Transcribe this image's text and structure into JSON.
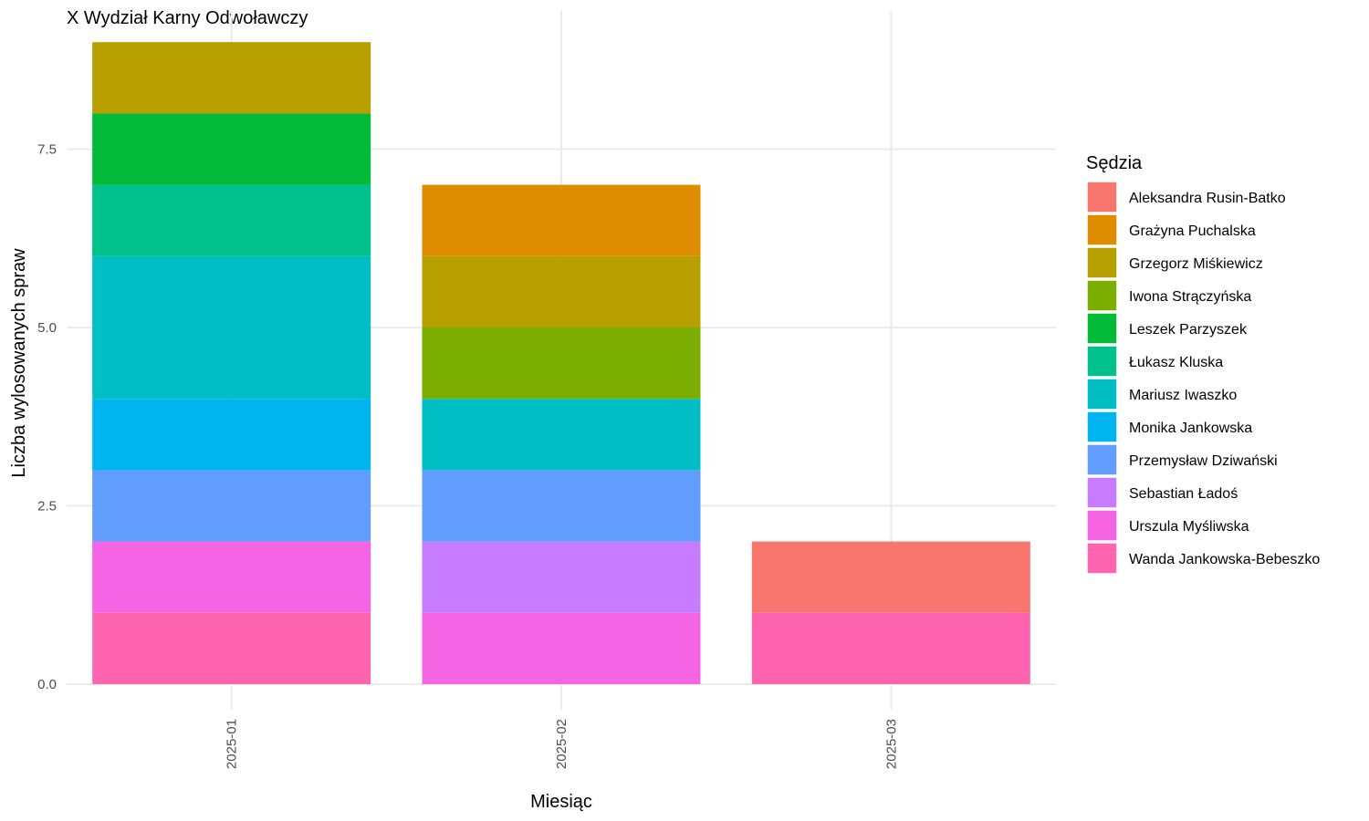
{
  "chart_data": {
    "type": "bar",
    "stacked": true,
    "title": "X Wydział Karny Odwoławczy",
    "xlabel": "Miesiąc",
    "ylabel": "Liczba wylosowanych spraw",
    "categories": [
      "2025-01",
      "2025-02",
      "2025-03"
    ],
    "ylim": [
      0,
      9
    ],
    "yticks": [
      0,
      2.5,
      5,
      7.5
    ],
    "ytick_labels": [
      "0.0",
      "2.5",
      "5.0",
      "7.5"
    ],
    "grid": true,
    "legend": {
      "title": "Sędzia",
      "position": "right"
    },
    "series": [
      {
        "name": "Aleksandra Rusin-Batko",
        "color": "#F8766D",
        "values": [
          0,
          0,
          1
        ]
      },
      {
        "name": "Grażyna Puchalska",
        "color": "#DE8C00",
        "values": [
          0,
          1,
          0
        ]
      },
      {
        "name": "Grzegorz Miśkiewicz",
        "color": "#B79F00",
        "values": [
          1,
          1,
          0
        ]
      },
      {
        "name": "Iwona Strączyńska",
        "color": "#7CAE00",
        "values": [
          0,
          1,
          0
        ]
      },
      {
        "name": "Leszek Parzyszek",
        "color": "#00BA38",
        "values": [
          1,
          0,
          0
        ]
      },
      {
        "name": "Łukasz Kluska",
        "color": "#00C08B",
        "values": [
          1,
          0,
          0
        ]
      },
      {
        "name": "Mariusz Iwaszko",
        "color": "#00BFC4",
        "values": [
          2,
          1,
          0
        ]
      },
      {
        "name": "Monika Jankowska",
        "color": "#00B4F0",
        "values": [
          1,
          0,
          0
        ]
      },
      {
        "name": "Przemysław Dziwański",
        "color": "#619CFF",
        "values": [
          1,
          1,
          0
        ]
      },
      {
        "name": "Sebastian Ładoś",
        "color": "#C77CFF",
        "values": [
          0,
          1,
          0
        ]
      },
      {
        "name": "Urszula Myśliwska",
        "color": "#F564E3",
        "values": [
          1,
          1,
          0
        ]
      },
      {
        "name": "Wanda Jankowska-Bebeszko",
        "color": "#FF64B0",
        "values": [
          1,
          0,
          1
        ]
      }
    ]
  }
}
